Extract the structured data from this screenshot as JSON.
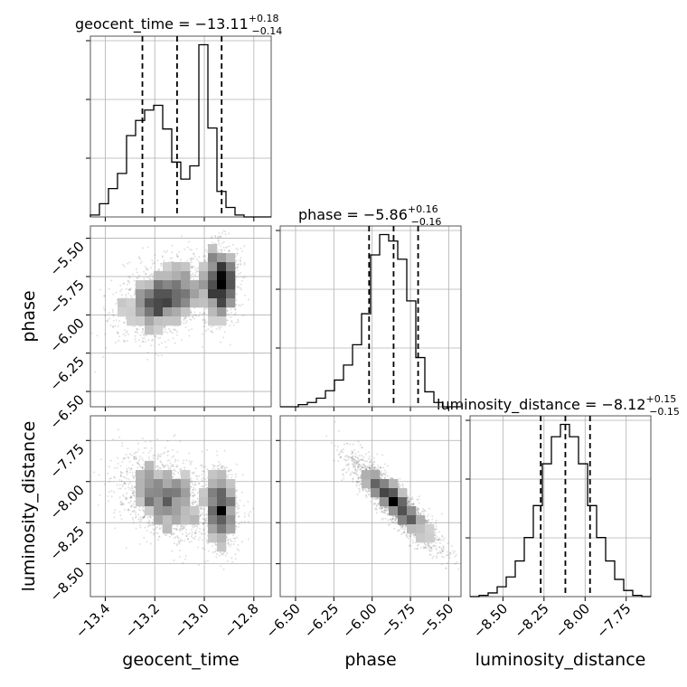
{
  "chart_data": {
    "type": "corner",
    "parameters": [
      {
        "name": "geocent_time",
        "label": "geocent_time",
        "range": [
          -13.46,
          -12.73
        ],
        "ticks": [
          -13.4,
          -13.2,
          -13.0,
          -12.8
        ],
        "tick_labels": [
          "−13.4",
          "−13.2",
          "−13.0",
          "−12.8"
        ]
      },
      {
        "name": "phase",
        "label": "phase",
        "range": [
          -6.6,
          -5.42
        ],
        "ticks": [
          -6.5,
          -6.25,
          -6.0,
          -5.75,
          -5.5
        ],
        "tick_labels": [
          "−6.50",
          "−6.25",
          "−6.00",
          "−5.75",
          "−5.50"
        ]
      },
      {
        "name": "luminosity_distance",
        "label": "luminosity_distance",
        "range": [
          -8.7,
          -7.6
        ],
        "ticks": [
          -8.5,
          -8.25,
          -8.0,
          -7.75
        ],
        "tick_labels": [
          "−8.50",
          "−8.25",
          "−8.00",
          "−7.75"
        ]
      }
    ],
    "titles": [
      {
        "name": "geocent_time",
        "prefix": "geocent_time = −13.11",
        "sup": "+0.18",
        "sub": "−0.14"
      },
      {
        "name": "phase",
        "prefix": "phase = −5.86",
        "sup": "+0.16",
        "sub": "−0.16"
      },
      {
        "name": "luminosity_distance",
        "prefix": "luminosity_distance = −8.12",
        "sup": "+0.15",
        "sub": "−0.15"
      }
    ],
    "histograms": [
      {
        "param": "geocent_time",
        "edges_range": [
          -13.46,
          -12.73
        ],
        "bins": 20,
        "counts": [
          2,
          14,
          30,
          46,
          86,
          102,
          113,
          118,
          93,
          58,
          40,
          54,
          182,
          94,
          27,
          10,
          2,
          0,
          0,
          0
        ],
        "quantiles": [
          -13.25,
          -13.11,
          -12.93
        ]
      },
      {
        "param": "phase",
        "edges_range": [
          -6.6,
          -5.42
        ],
        "bins": 20,
        "counts": [
          0,
          0,
          2,
          4,
          8,
          15,
          25,
          39,
          58,
          87,
          142,
          161,
          155,
          138,
          99,
          46,
          14,
          4,
          0,
          0
        ],
        "quantiles": [
          -6.02,
          -5.86,
          -5.7
        ]
      },
      {
        "param": "luminosity_distance",
        "edges_range": [
          -8.7,
          -7.6
        ],
        "bins": 20,
        "counts": [
          0,
          1,
          3,
          8,
          16,
          29,
          48,
          74,
          108,
          130,
          140,
          130,
          108,
          74,
          48,
          29,
          14,
          5,
          1,
          0
        ],
        "quantiles": [
          -8.27,
          -8.12,
          -7.97
        ]
      }
    ],
    "pairs": [
      {
        "x": "geocent_time",
        "y": "phase"
      },
      {
        "x": "geocent_time",
        "y": "luminosity_distance"
      },
      {
        "x": "phase",
        "y": "luminosity_distance"
      }
    ],
    "grid": true
  }
}
